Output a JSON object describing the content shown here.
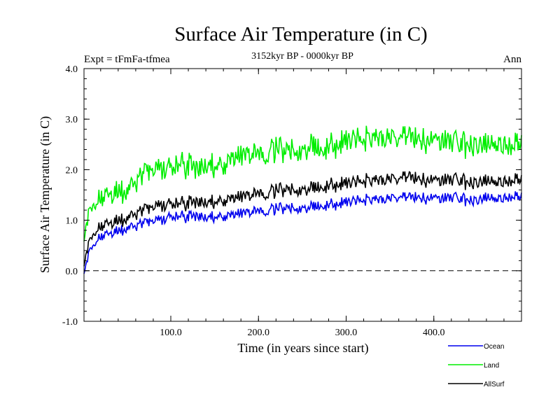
{
  "chart_data": {
    "type": "line",
    "title": "Surface Air Temperature (in C)",
    "subtitle": "3152kyr BP - 0000kyr BP",
    "annotation_left": "Expt = tFmFa-tfmea",
    "annotation_right": "Ann",
    "xlabel": "Time (in years since start)",
    "ylabel": "Surface Air Temperature (in C)",
    "xlim": [
      1,
      500
    ],
    "ylim": [
      -1.0,
      4.0
    ],
    "x_ticks": [
      100,
      200,
      300,
      400
    ],
    "x_tick_labels": [
      "100.0",
      "200.0",
      "300.0",
      "400.0"
    ],
    "y_ticks": [
      -1.0,
      0.0,
      1.0,
      2.0,
      3.0,
      4.0
    ],
    "y_tick_labels": [
      "-1.0",
      "0.0",
      "1.0",
      "2.0",
      "3.0",
      "4.0"
    ],
    "reference_line": {
      "y": 0.0,
      "style": "dashed"
    },
    "legend_position": "bottom-right",
    "series": [
      {
        "name": "Ocean",
        "color": "#0000ee",
        "x": [
          1,
          3,
          5,
          8,
          12,
          16,
          20,
          25,
          30,
          35,
          40,
          45,
          50,
          55,
          60,
          65,
          70,
          75,
          80,
          85,
          90,
          95,
          100,
          110,
          120,
          130,
          140,
          150,
          160,
          170,
          180,
          190,
          200,
          210,
          220,
          230,
          240,
          250,
          260,
          270,
          280,
          290,
          300,
          310,
          320,
          330,
          340,
          350,
          360,
          370,
          380,
          390,
          400,
          410,
          420,
          430,
          440,
          450,
          460,
          470,
          480,
          490,
          495,
          500
        ],
        "values": [
          -0.05,
          0.1,
          0.25,
          0.45,
          0.5,
          0.6,
          0.65,
          0.7,
          0.72,
          0.75,
          0.78,
          0.8,
          0.85,
          0.88,
          0.9,
          0.95,
          0.95,
          0.98,
          1.0,
          1.02,
          1.0,
          1.05,
          1.05,
          1.05,
          1.08,
          1.1,
          1.05,
          1.08,
          1.1,
          1.12,
          1.15,
          1.18,
          1.2,
          1.2,
          1.22,
          1.25,
          1.22,
          1.25,
          1.25,
          1.28,
          1.3,
          1.3,
          1.35,
          1.38,
          1.4,
          1.42,
          1.4,
          1.42,
          1.45,
          1.45,
          1.45,
          1.42,
          1.45,
          1.42,
          1.45,
          1.42,
          1.4,
          1.42,
          1.45,
          1.42,
          1.45,
          1.48,
          1.5,
          1.55
        ]
      },
      {
        "name": "Land",
        "color": "#00ee00",
        "x": [
          1,
          3,
          5,
          8,
          12,
          16,
          20,
          25,
          30,
          35,
          40,
          45,
          50,
          55,
          60,
          65,
          70,
          75,
          80,
          85,
          90,
          95,
          100,
          110,
          120,
          130,
          140,
          150,
          160,
          170,
          180,
          190,
          200,
          210,
          220,
          230,
          240,
          250,
          260,
          270,
          280,
          290,
          300,
          310,
          320,
          330,
          340,
          350,
          360,
          370,
          380,
          390,
          400,
          410,
          420,
          430,
          440,
          450,
          460,
          470,
          480,
          490,
          495,
          500
        ],
        "values": [
          0.6,
          0.85,
          1.05,
          1.25,
          1.3,
          1.35,
          1.4,
          1.45,
          1.48,
          1.5,
          1.55,
          1.55,
          1.6,
          1.7,
          1.8,
          1.9,
          1.95,
          2.0,
          2.02,
          2.05,
          2.0,
          2.05,
          2.0,
          2.05,
          2.1,
          2.05,
          2.08,
          2.1,
          2.15,
          2.25,
          2.3,
          2.35,
          2.35,
          2.35,
          2.4,
          2.4,
          2.35,
          2.4,
          2.45,
          2.4,
          2.45,
          2.45,
          2.55,
          2.6,
          2.6,
          2.65,
          2.6,
          2.6,
          2.62,
          2.65,
          2.6,
          2.55,
          2.6,
          2.55,
          2.55,
          2.5,
          2.5,
          2.55,
          2.5,
          2.5,
          2.52,
          2.5,
          2.6,
          2.7
        ]
      },
      {
        "name": "AllSurf",
        "color": "#000000",
        "x": [
          1,
          3,
          5,
          8,
          12,
          16,
          20,
          25,
          30,
          35,
          40,
          45,
          50,
          55,
          60,
          65,
          70,
          75,
          80,
          85,
          90,
          95,
          100,
          110,
          120,
          130,
          140,
          150,
          160,
          170,
          180,
          190,
          200,
          210,
          220,
          230,
          240,
          250,
          260,
          270,
          280,
          290,
          300,
          310,
          320,
          330,
          340,
          350,
          360,
          370,
          380,
          390,
          400,
          410,
          420,
          430,
          440,
          450,
          460,
          470,
          480,
          490,
          495,
          500
        ],
        "values": [
          0.1,
          0.3,
          0.45,
          0.65,
          0.72,
          0.8,
          0.85,
          0.9,
          0.92,
          0.95,
          0.98,
          1.0,
          1.05,
          1.1,
          1.15,
          1.2,
          1.22,
          1.25,
          1.28,
          1.3,
          1.28,
          1.32,
          1.3,
          1.3,
          1.35,
          1.38,
          1.35,
          1.38,
          1.42,
          1.45,
          1.48,
          1.52,
          1.55,
          1.55,
          1.58,
          1.62,
          1.58,
          1.62,
          1.62,
          1.65,
          1.68,
          1.68,
          1.72,
          1.75,
          1.78,
          1.8,
          1.78,
          1.8,
          1.82,
          1.85,
          1.82,
          1.78,
          1.8,
          1.78,
          1.8,
          1.78,
          1.75,
          1.78,
          1.78,
          1.75,
          1.78,
          1.8,
          1.85,
          1.9
        ]
      }
    ]
  }
}
